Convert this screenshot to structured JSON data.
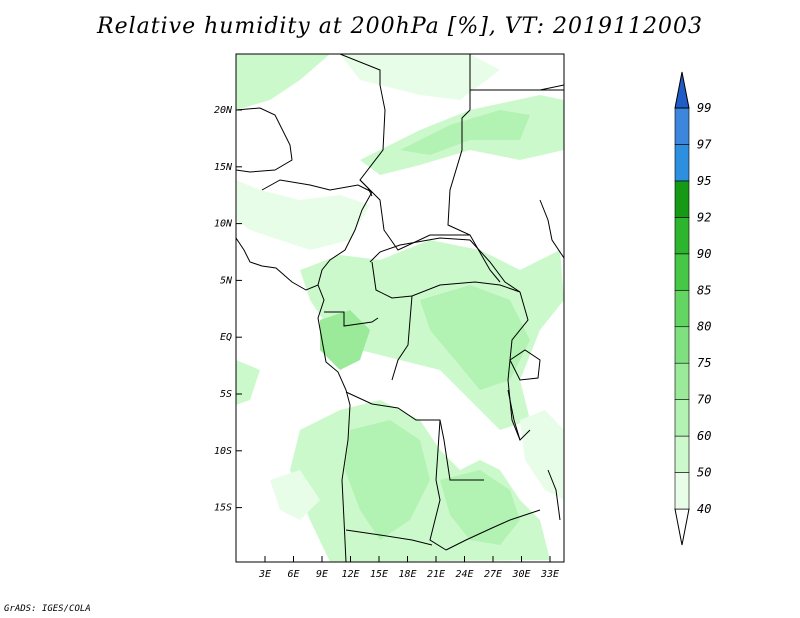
{
  "title": "Relative humidity at 200hPa [%], VT: 2019112003",
  "credit": "GrADS: IGES/COLA",
  "map": {
    "lat_labels": [
      "20N",
      "15N",
      "10N",
      "5N",
      "EQ",
      "5S",
      "10S",
      "15S"
    ],
    "lon_labels": [
      "3E",
      "6E",
      "9E",
      "12E",
      "15E",
      "18E",
      "21E",
      "24E",
      "27E",
      "30E",
      "33E"
    ]
  },
  "colorbar": {
    "levels": [
      "40",
      "50",
      "60",
      "70",
      "75",
      "80",
      "85",
      "90",
      "92",
      "95",
      "97",
      "99"
    ],
    "colors": [
      "#e8fde8",
      "#ccf9cc",
      "#b2f2b2",
      "#9aea9a",
      "#7fe07f",
      "#63d563",
      "#46c846",
      "#2db52d",
      "#169a16",
      "#2d8fe0",
      "#3d86dd",
      "#1f6bd1",
      "#1f5cc8"
    ]
  }
}
